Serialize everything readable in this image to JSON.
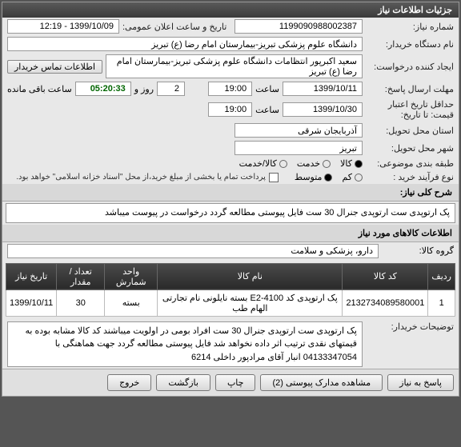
{
  "panels": {
    "top_header": "جزئیات اطلاعات نیاز",
    "mid_header": "شرح کلی نیاز:",
    "tbl_header": "اطلاعات کالاهای مورد نیاز"
  },
  "fields": {
    "need_no_lbl": "شماره نیاز:",
    "need_no": "1199090988002387",
    "pub_date_lbl": "تاریخ و ساعت اعلان عمومی:",
    "pub_date": "1399/10/09 - 12:19",
    "buyer_lbl": "نام دستگاه خریدار:",
    "buyer": "دانشگاه علوم پزشکی تبریز-بیمارستان امام رضا (ع) تبریز",
    "creator_lbl": "ایجاد کننده درخواست:",
    "creator": "سعید اکبرپور انتظامات دانشگاه علوم پزشکی تبریز-بیمارستان امام رضا (ع) تبریز",
    "contact_btn": "اطلاعات تماس خریدار",
    "deadline_lbl": "مهلت ارسال پاسخ:",
    "from_lbl": "تا تاریخ:",
    "deadline_date": "1399/10/11",
    "time_lbl": "ساعت",
    "deadline_time": "19:00",
    "days_lbl": "روز و",
    "days_val": "2",
    "countdown": "05:20:33",
    "remain_lbl": "ساعت باقی مانده",
    "valid_lbl": "حداقل تاریخ اعتبار قیمت: تا تاریخ:",
    "valid_date": "1399/10/30",
    "valid_time": "19:00",
    "deliver_prov_lbl": "استان محل تحویل:",
    "deliver_prov": "آذربایجان شرقی",
    "deliver_city_lbl": "شهر محل تحویل:",
    "deliver_city": "تبریز",
    "cat_lbl": "طبقه بندی موضوعی:",
    "cat_goods": "کالا",
    "cat_service": "خدمت",
    "cat_both": "کالا/خدمت",
    "buy_type_lbl": "نوع فرآیند خرید :",
    "buy_low": "کم",
    "buy_mid": "متوسط",
    "partial_lbl": "پرداخت تمام یا بخشی از مبلغ خرید،از محل \"اسناد خزانه اسلامی\" خواهد بود.",
    "need_desc": "پک ارتوپدی ست ارتوپدی جنرال 30 ست فایل پیوستی مطالعه گردد درخواست در پیوست میباشد",
    "group_lbl": "گروه کالا:",
    "group_val": "دارو، پزشکی و سلامت",
    "buyer_notes_lbl": "توضیحات خریدار:",
    "buyer_notes": "پک ارتوپدی ست ارتوپدی جنرال 30 ست افراد بومی در اولویت میباشند کد کالا مشابه بوده به قیمتهای نقدی ترتیب اثر داده نخواهد شد فایل پیوستی مطالعه گردد جهت هماهنگی با 04133347054 انبار آقای مرادپور داخلی 6214"
  },
  "table": {
    "cols": [
      "ردیف",
      "کد کالا",
      "نام کالا",
      "واحد شمارش",
      "تعداد / مقدار",
      "تاریخ نیاز"
    ],
    "rows": [
      [
        "1",
        "2132734089580001",
        "پک ارتوپدی کد E2-4100 بسته نایلونی نام تجارتی الهام طب",
        "بسته",
        "30",
        "1399/10/11"
      ]
    ]
  },
  "buttons": {
    "reply": "پاسخ به نیاز",
    "attach": "مشاهده مدارک پیوستی (2)",
    "print": "چاپ",
    "back": "بازگشت",
    "exit": "خروج"
  },
  "colors": {
    "header_bg": "#3a3a3a",
    "panel_bg": "#e8e8e8",
    "countdown_color": "#006600"
  }
}
